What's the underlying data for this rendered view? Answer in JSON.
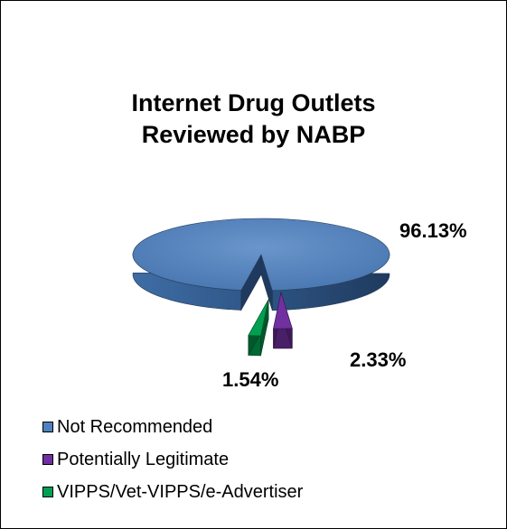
{
  "chart_data": {
    "type": "pie",
    "title_lines": [
      "Internet Drug Outlets",
      "Reviewed by NABP"
    ],
    "categories": [
      "Not Recommended",
      "Potentially Legitimate",
      "VIPPS/Vet-VIPPS/e-Advertiser"
    ],
    "values": [
      96.13,
      2.33,
      1.54
    ],
    "value_labels": [
      "96.13%",
      "2.33%",
      "1.54%"
    ],
    "colors": [
      "#4F81BD",
      "#7030A0",
      "#00A050"
    ],
    "legend_position": "bottom-left",
    "style": "3d-exploded"
  }
}
